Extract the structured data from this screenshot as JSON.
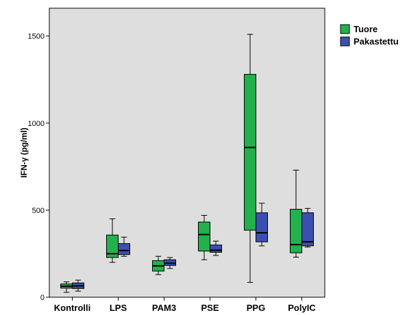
{
  "chart_data": {
    "type": "boxplot",
    "ylabel": "IFN-γ (pg/ml)",
    "xlabel": "",
    "ylim": [
      0,
      1660
    ],
    "yticks": [
      0,
      500,
      1000,
      1500
    ],
    "grid": false,
    "legend_position": "right",
    "categories": [
      "Kontrolli",
      "LPS",
      "PAM3",
      "PSE",
      "PPG",
      "PolyIC"
    ],
    "series": [
      {
        "name": "Tuore",
        "color": "#22b14c",
        "boxes": [
          {
            "min": 28,
            "q1": 52,
            "median": 63,
            "q3": 76,
            "max": 88
          },
          {
            "min": 200,
            "q1": 228,
            "median": 250,
            "q3": 357,
            "max": 450
          },
          {
            "min": 130,
            "q1": 150,
            "median": 180,
            "q3": 210,
            "max": 235
          },
          {
            "min": 215,
            "q1": 265,
            "median": 360,
            "q3": 432,
            "max": 470
          },
          {
            "min": 85,
            "q1": 385,
            "median": 860,
            "q3": 1280,
            "max": 1510
          },
          {
            "min": 230,
            "q1": 255,
            "median": 302,
            "q3": 505,
            "max": 730
          }
        ]
      },
      {
        "name": "Pakastettu",
        "color": "#3b4fb0",
        "boxes": [
          {
            "min": 35,
            "q1": 50,
            "median": 65,
            "q3": 82,
            "max": 98
          },
          {
            "min": 235,
            "q1": 245,
            "median": 268,
            "q3": 308,
            "max": 345
          },
          {
            "min": 165,
            "q1": 182,
            "median": 195,
            "q3": 215,
            "max": 228
          },
          {
            "min": 240,
            "q1": 258,
            "median": 270,
            "q3": 300,
            "max": 322
          },
          {
            "min": 295,
            "q1": 318,
            "median": 370,
            "q3": 485,
            "max": 540
          },
          {
            "min": 288,
            "q1": 295,
            "median": 318,
            "q3": 485,
            "max": 510
          }
        ]
      }
    ]
  }
}
